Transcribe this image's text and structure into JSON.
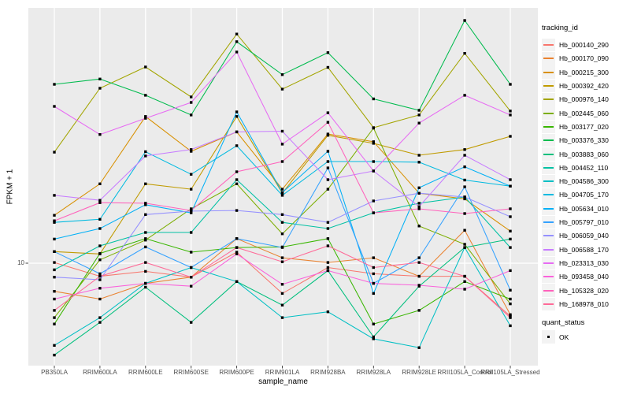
{
  "axes": {
    "x_title": "sample_name",
    "y_title": "FPKM + 1",
    "y_tick_label": "10"
  },
  "legend": {
    "tracking_title": "tracking_id",
    "quant_title": "quant_status",
    "quant_ok_label": "OK"
  },
  "style": {
    "panel_bg": "#EBEBEB",
    "grid_color": "#FFFFFF",
    "tick_color": "#333333",
    "point_color": "#000000",
    "axis_text_color": "#4D4D4D",
    "legend_key_bg": "#F3F3F3"
  },
  "chart_data": {
    "type": "line",
    "title": "",
    "xlabel": "sample_name",
    "ylabel": "FPKM + 1",
    "y_scale": "log10",
    "y_ticks": [
      10
    ],
    "ylim": [
      2.3,
      380
    ],
    "grid": "major-white-on-gray",
    "legend_position": "right",
    "point_marker": "small-black-square",
    "categories": [
      "PB350LA",
      "RRIM600LA",
      "RRIM600LE",
      "RRIM600SE",
      "RRIM600PE",
      "RRIM901LA",
      "RRIM928BA",
      "RRIM928LA",
      "RRIM928LE",
      "RRII105LA_Control",
      "RRII105LA_Stressed"
    ],
    "series": [
      {
        "name": "Hb_000140_290",
        "color": "#F8766D",
        "values": [
          10.1,
          8.3,
          8.9,
          8.2,
          11.7,
          6.5,
          9.4,
          8.6,
          8.3,
          8.3,
          4.7
        ]
      },
      {
        "name": "Hb_000170_090",
        "color": "#EA8331",
        "values": [
          6.7,
          6.0,
          7.5,
          8.2,
          14.2,
          10.8,
          10.1,
          10.8,
          8.3,
          16.0,
          4.8
        ]
      },
      {
        "name": "Hb_000215_300",
        "color": "#D89000",
        "values": [
          19.8,
          31,
          81,
          49.3,
          65,
          28.7,
          63,
          56.5,
          27.1,
          25,
          15.8
        ]
      },
      {
        "name": "Hb_000392_420",
        "color": "#C09B00",
        "values": [
          11.8,
          11.4,
          31,
          28.7,
          81,
          27.1,
          61.9,
          55.2,
          46.6,
          50.5,
          61
        ]
      },
      {
        "name": "Hb_000976_140",
        "color": "#A3A500",
        "values": [
          48.7,
          121,
          164,
          107,
          262,
          119.5,
          163,
          69,
          82.7,
          199,
          87.5
        ]
      },
      {
        "name": "Hb_002445_060",
        "color": "#7CAE00",
        "values": [
          4.6,
          10.5,
          13.9,
          21.7,
          31,
          15.2,
          28.7,
          68.6,
          17,
          13.1,
          5.6
        ]
      },
      {
        "name": "Hb_003177_020",
        "color": "#39B600",
        "values": [
          4.2,
          11.5,
          14.2,
          11.7,
          12.5,
          12.6,
          14.2,
          4.2,
          5.1,
          7.7,
          6.0
        ]
      },
      {
        "name": "Hb_003376_330",
        "color": "#00BB4E",
        "values": [
          128,
          138,
          109.5,
          82.7,
          235,
          147,
          201,
          104,
          88.4,
          318,
          128
        ]
      },
      {
        "name": "Hb_003883_060",
        "color": "#00BF7D",
        "values": [
          2.7,
          4.3,
          7.1,
          4.3,
          7.7,
          5.5,
          9.0,
          3.5,
          7.2,
          12.5,
          14.1
        ]
      },
      {
        "name": "Hb_004452_110",
        "color": "#00C1A3",
        "values": [
          9.1,
          12.8,
          15.5,
          15.5,
          32.9,
          17.9,
          16.4,
          20.5,
          23.5,
          25.7,
          12.5
        ]
      },
      {
        "name": "Hb_004586_300",
        "color": "#00BFC4",
        "values": [
          3.1,
          4.6,
          7.5,
          9.4,
          7.7,
          4.6,
          5.0,
          3.4,
          3.0,
          12.5,
          4.1
        ]
      },
      {
        "name": "Hb_004705_170",
        "color": "#00BAE0",
        "values": [
          17.9,
          18.7,
          49,
          35.5,
          53.4,
          26.3,
          42.6,
          42.6,
          42.2,
          32.7,
          30
        ]
      },
      {
        "name": "Hb_005634_010",
        "color": "#00B0F6",
        "values": [
          14.1,
          16.4,
          23,
          20.5,
          86.4,
          27.4,
          49.3,
          6.5,
          29.3,
          39.5,
          30
        ]
      },
      {
        "name": "Hb_005797_010",
        "color": "#35A2FF",
        "values": [
          11.8,
          8.6,
          12.6,
          9.4,
          14.2,
          12.5,
          38.9,
          7.5,
          10.8,
          29.7,
          6.8
        ]
      },
      {
        "name": "Hb_006059_040",
        "color": "#9590FF",
        "values": [
          8.2,
          7.9,
          20,
          21,
          21.2,
          20,
          17.9,
          24.3,
          27.1,
          25.7,
          19.4
        ]
      },
      {
        "name": "Hb_006588_170",
        "color": "#C77CFF",
        "values": [
          26.3,
          24.5,
          46.1,
          50.5,
          65,
          65.6,
          32.9,
          37.2,
          22.4,
          46.6,
          32.9
        ]
      },
      {
        "name": "Hb_023313_030",
        "color": "#E76BF3",
        "values": [
          93.5,
          62.6,
          78.9,
          98.9,
          203,
          54.6,
          85.4,
          37.2,
          73.7,
          109.5,
          82.7
        ]
      },
      {
        "name": "Hb_093458_040",
        "color": "#FA62DB",
        "values": [
          6.0,
          7.0,
          7.5,
          7.2,
          11.4,
          7.4,
          9.0,
          7.5,
          7.3,
          6.9,
          9.0
        ]
      },
      {
        "name": "Hb_105328_020",
        "color": "#FF62BC",
        "values": [
          18.3,
          23.7,
          23.5,
          21.2,
          36.8,
          42.6,
          74.5,
          20.5,
          21.7,
          20.3,
          21.7
        ]
      },
      {
        "name": "Hb_168978_010",
        "color": "#FF6A98",
        "values": [
          5.1,
          8.3,
          10.1,
          8.2,
          12.5,
          10.2,
          12.8,
          9.4,
          10.1,
          8.3,
          4.6
        ]
      }
    ]
  }
}
